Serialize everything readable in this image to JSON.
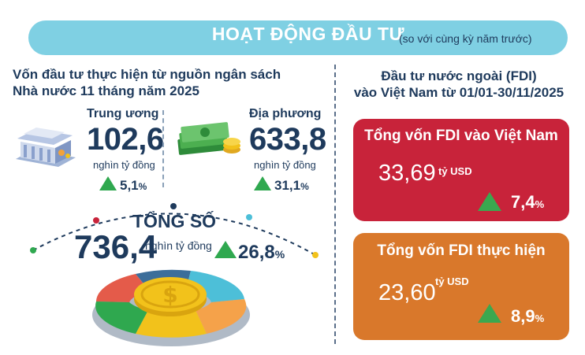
{
  "header": {
    "title": "HOẠT ĐỘNG ĐẦU TƯ",
    "subtitle": "(so với cùng kỳ năm trước)"
  },
  "budget": {
    "title_line1": "Vốn đầu tư thực hiện từ nguồn ngân sách",
    "title_line2": "Nhà nước 11 tháng năm 2025",
    "central": {
      "label": "Trung ương",
      "value": "102,6",
      "unit": "nghìn tỷ đồng",
      "change": "5,1",
      "pct_sign": "%"
    },
    "local": {
      "label": "Địa phương",
      "value": "633,8",
      "unit": "nghìn tỷ đồng",
      "change": "31,1",
      "pct_sign": "%"
    },
    "total": {
      "label": "TỔNG SỐ",
      "value": "736,4",
      "unit": "nghìn tỷ đồng",
      "change": "26,8",
      "pct_sign": "%"
    }
  },
  "fdi": {
    "title_line1": "Đầu tư nước ngoài (FDI)",
    "title_line2": "vào Việt Nam từ 01/01-30/11/2025",
    "registered": {
      "label": "Tổng vốn FDI vào Việt Nam",
      "value": "33,69",
      "unit": "tỷ USD",
      "change": "7,4",
      "pct_sign": "%"
    },
    "disbursed": {
      "label": "Tổng vốn FDI thực hiện",
      "value": "23,60",
      "unit": "tỷ USD",
      "change": "8,9",
      "pct_sign": "%"
    }
  },
  "colors": {
    "header_bg": "#7fd0e3",
    "text_dark": "#1e3a5c",
    "up_green": "#2fa84f",
    "card_red": "#c8233a",
    "card_orange": "#d9782b",
    "coin_gold": "#f2c21b"
  },
  "icons": {
    "central": "government-building-icon",
    "local": "money-stack-icon",
    "total": "dollar-coin-icon",
    "change": "triangle-up-icon"
  }
}
